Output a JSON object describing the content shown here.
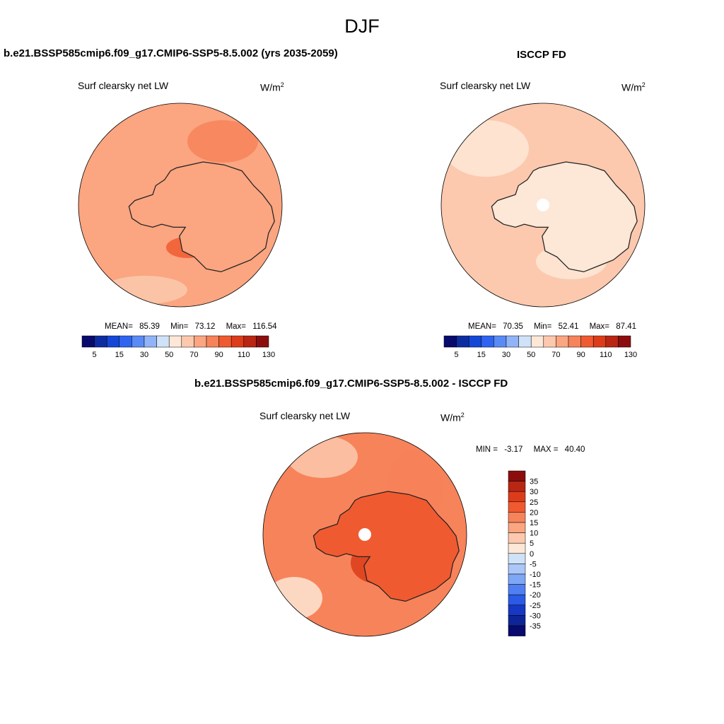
{
  "figure": {
    "season": "DJF",
    "units_base": "W/m",
    "units_exp": "2"
  },
  "panels": [
    {
      "title": "b.e21.BSSP585cmip6.f09_g17.CMIP6-SSP5-8.5.002 (yrs 2035-2059)",
      "variable": "Surf clearsky net LW",
      "stats": {
        "mean_label": "MEAN=",
        "mean": "85.39",
        "min_label": "Min=",
        "min": "73.12",
        "max_label": "Max=",
        "max": "116.54"
      }
    },
    {
      "title": "ISCCP FD",
      "variable": "Surf clearsky net LW",
      "stats": {
        "mean_label": "MEAN=",
        "mean": "70.35",
        "min_label": "Min=",
        "min": "52.41",
        "max_label": "Max=",
        "max": "87.41"
      }
    },
    {
      "title": "b.e21.BSSP585cmip6.f09_g17.CMIP6-SSP5-8.5.002 - ISCCP FD",
      "variable": "Surf clearsky net LW",
      "stats": {
        "min_label": "MIN =",
        "min": "-3.17",
        "max_label": "MAX =",
        "max": "40.40"
      }
    }
  ],
  "colorbar_abs": {
    "colors": [
      "#080a6e",
      "#0d2ca0",
      "#1447d6",
      "#2e64f0",
      "#5a8af5",
      "#90b4f7",
      "#cfe2f7",
      "#fde7d6",
      "#fcc9ae",
      "#fba581",
      "#f7835a",
      "#f05a30",
      "#dd3c1a",
      "#b92613",
      "#8c0d0d"
    ],
    "labels": [
      "5",
      "15",
      "30",
      "50",
      "70",
      "90",
      "110",
      "130"
    ]
  },
  "colorbar_diff": {
    "colors": [
      "#8c0d0d",
      "#b92613",
      "#dd3c1a",
      "#f05a30",
      "#f7835a",
      "#fba581",
      "#fcc9ae",
      "#fde7d6",
      "#cfe2f7",
      "#aac7f7",
      "#7ea7f5",
      "#4f7ff2",
      "#2a5ae6",
      "#1638c4",
      "#0d2596",
      "#080a6e"
    ],
    "labels": [
      "35",
      "30",
      "25",
      "20",
      "15",
      "10",
      "5",
      "0",
      "-5",
      "-10",
      "-15",
      "-20",
      "-25",
      "-30",
      "-35"
    ]
  },
  "maps": [
    {
      "region": "antarctica-south-polar",
      "base_color": "#fba581",
      "land_color": "#fba581"
    },
    {
      "region": "antarctica-south-polar",
      "base_color": "#fcc9ae",
      "land_color": "#fde7d6"
    },
    {
      "region": "antarctica-south-polar",
      "base_color": "#f7835a",
      "land_color": "#f05a30"
    }
  ]
}
